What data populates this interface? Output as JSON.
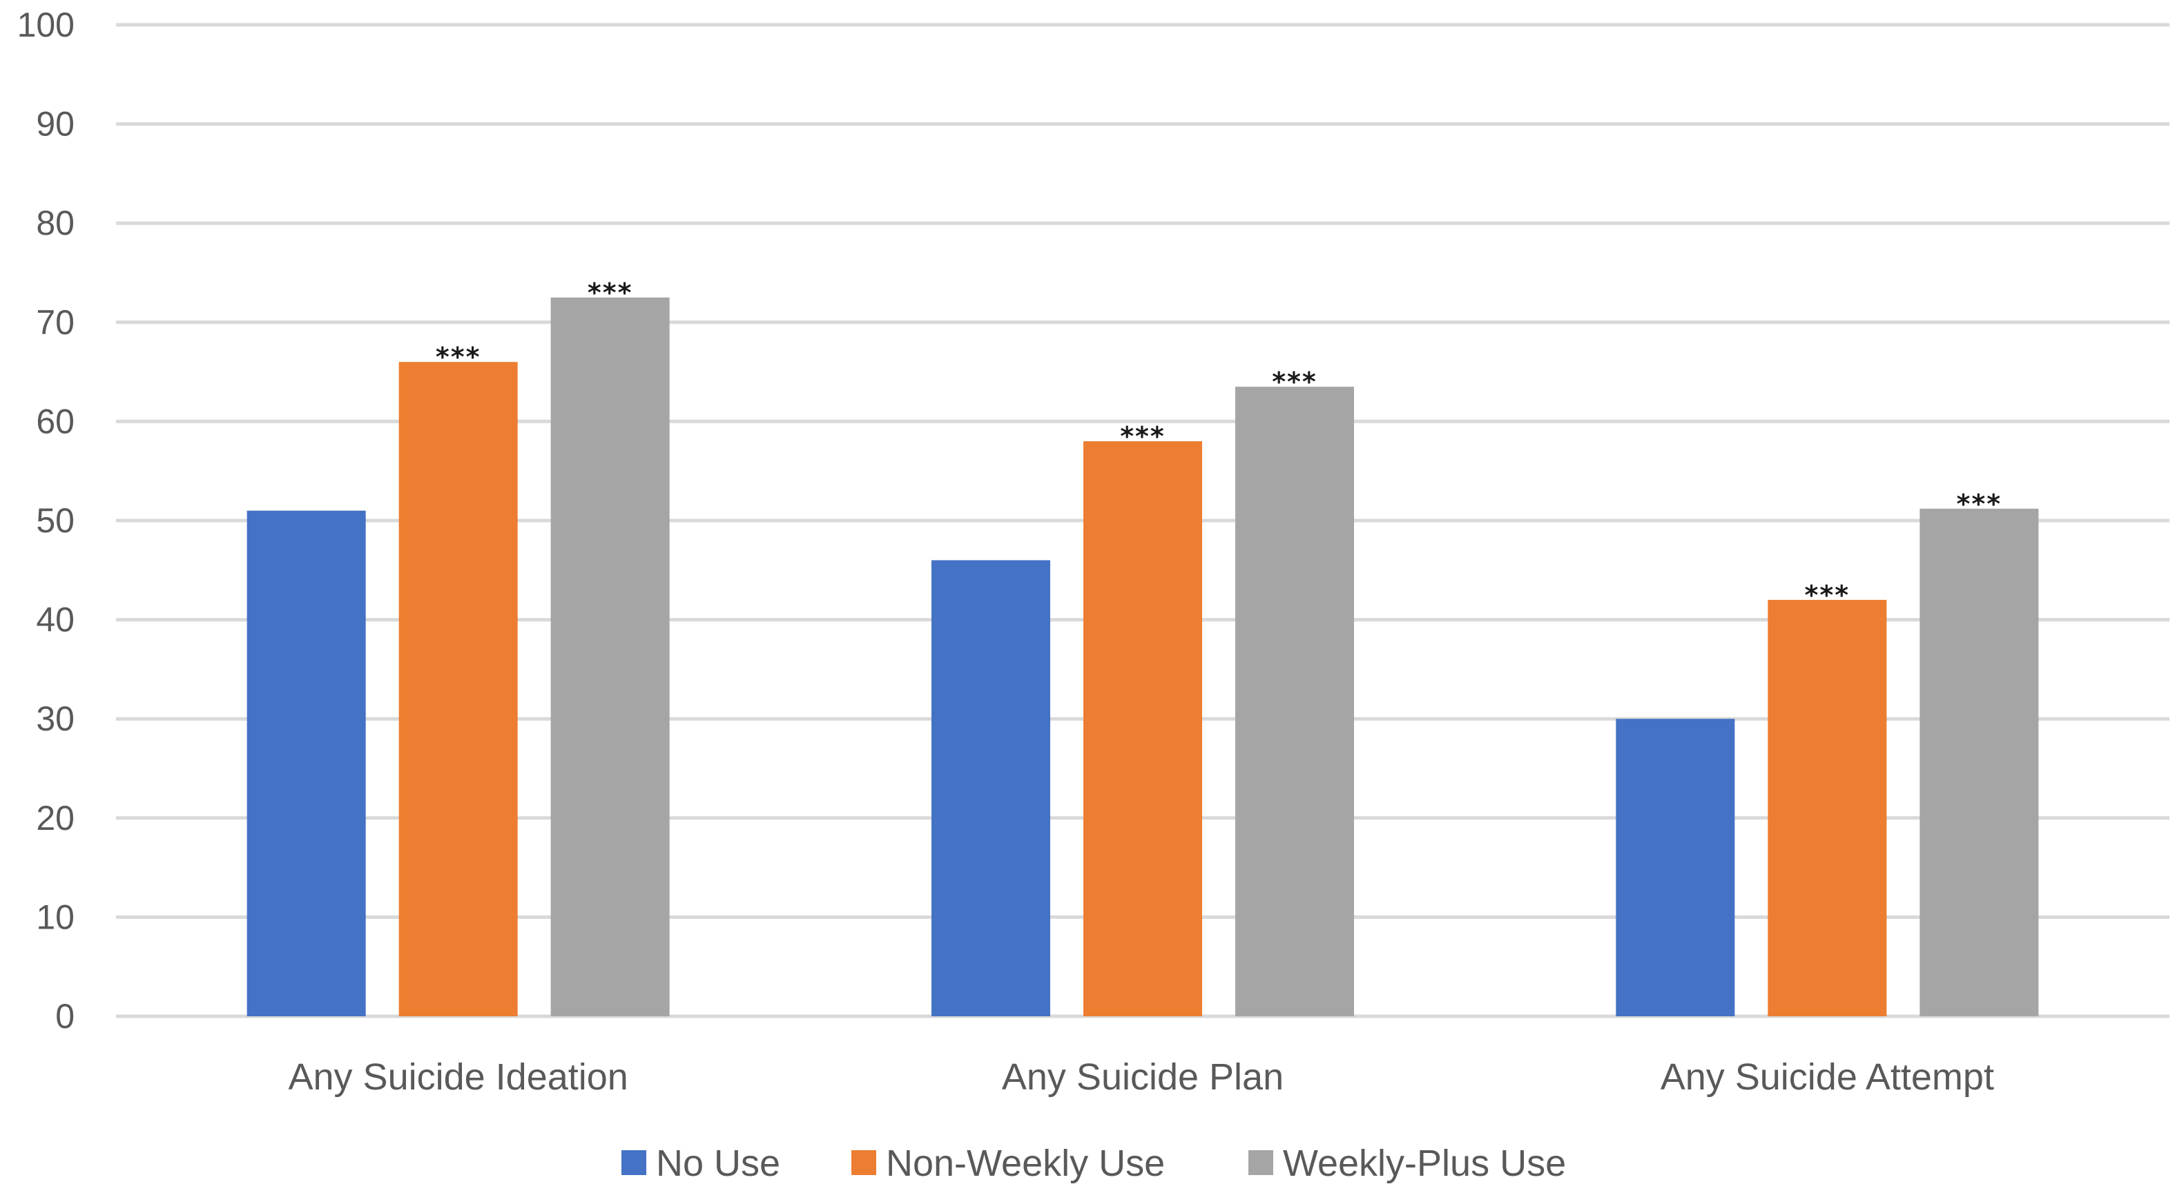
{
  "chart_data": {
    "type": "bar",
    "title": "",
    "xlabel": "",
    "ylabel": "",
    "ylim": [
      0,
      100
    ],
    "yticks": [
      0,
      10,
      20,
      30,
      40,
      50,
      60,
      70,
      80,
      90,
      100
    ],
    "grid": true,
    "legend_position": "bottom-center",
    "categories": [
      "Any Suicide Ideation",
      "Any Suicide Plan",
      "Any Suicide Attempt"
    ],
    "series": [
      {
        "name": "No Use",
        "color": "#4472c4",
        "values": [
          51,
          46,
          30
        ],
        "annotations": [
          "",
          "",
          ""
        ]
      },
      {
        "name": "Non-Weekly Use",
        "color": "#ed7d31",
        "values": [
          66,
          58,
          42
        ],
        "annotations": [
          "***",
          "***",
          "***"
        ]
      },
      {
        "name": "Weekly-Plus Use",
        "color": "#a5a5a5",
        "values": [
          72.5,
          63.5,
          51.2
        ],
        "annotations": [
          "***",
          "***",
          "***"
        ]
      }
    ]
  }
}
